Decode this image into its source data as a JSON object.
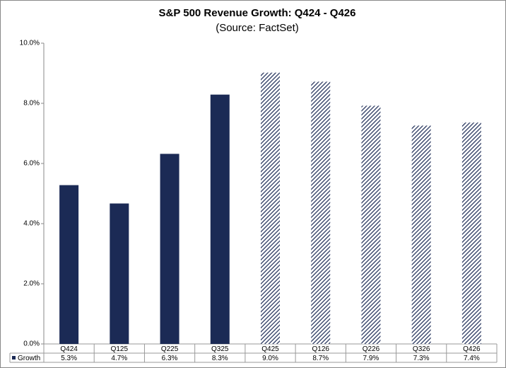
{
  "chart_data": {
    "type": "bar",
    "title": "S&P 500 Revenue Growth: Q424 - Q426",
    "subtitle": "(Source: FactSet)",
    "categories": [
      "Q424",
      "Q125",
      "Q225",
      "Q325",
      "Q425",
      "Q126",
      "Q226",
      "Q326",
      "Q426"
    ],
    "series": [
      {
        "name": "Growth",
        "color": "#1b2a55",
        "values": [
          5.28,
          4.67,
          6.32,
          8.29,
          9.02,
          8.72,
          7.92,
          7.26,
          7.36
        ],
        "value_labels": [
          "5.3%",
          "4.7%",
          "6.3%",
          "8.3%",
          "9.0%",
          "8.7%",
          "7.9%",
          "7.3%",
          "7.4%"
        ],
        "fill_styles": [
          "solid",
          "solid",
          "solid",
          "solid",
          "hatched",
          "hatched",
          "hatched",
          "hatched",
          "hatched"
        ]
      }
    ],
    "ylim": [
      0,
      10
    ],
    "yticks": [
      {
        "value": 0,
        "label": "0.0%"
      },
      {
        "value": 2,
        "label": "2.0%"
      },
      {
        "value": 4,
        "label": "4.0%"
      },
      {
        "value": 6,
        "label": "6.0%"
      },
      {
        "value": 8,
        "label": "8.0%"
      },
      {
        "value": 10,
        "label": "10.0%"
      }
    ],
    "grid": false
  }
}
